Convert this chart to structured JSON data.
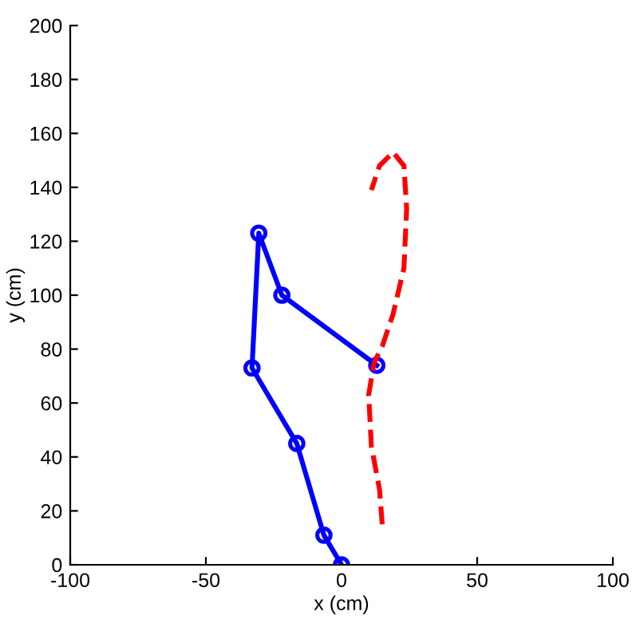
{
  "chart_data": {
    "type": "line",
    "xlabel": "x (cm)",
    "ylabel": "y (cm)",
    "xlim": [
      -100,
      100
    ],
    "ylim": [
      0,
      200
    ],
    "xticks": [
      -100,
      -50,
      0,
      50,
      100
    ],
    "yticks": [
      0,
      20,
      40,
      60,
      80,
      100,
      120,
      140,
      160,
      180,
      200
    ],
    "grid": false,
    "legend": false,
    "series": [
      {
        "color": "#0000ff",
        "marker": "circle",
        "line_style": "solid",
        "x": [
          0,
          -6.5,
          -16.5,
          -33,
          -30.5,
          -22,
          13
        ],
        "values": [
          0,
          11,
          45,
          73,
          123,
          100,
          74
        ]
      },
      {
        "color": "#ff0000",
        "marker": "none",
        "line_style": "dashed",
        "x": [
          15,
          14,
          11,
          10,
          12,
          15,
          19,
          23,
          24,
          23,
          19,
          14,
          11
        ],
        "values": [
          15,
          28,
          44,
          63,
          75,
          81,
          93,
          110,
          132,
          148,
          153,
          148,
          139
        ]
      }
    ]
  }
}
